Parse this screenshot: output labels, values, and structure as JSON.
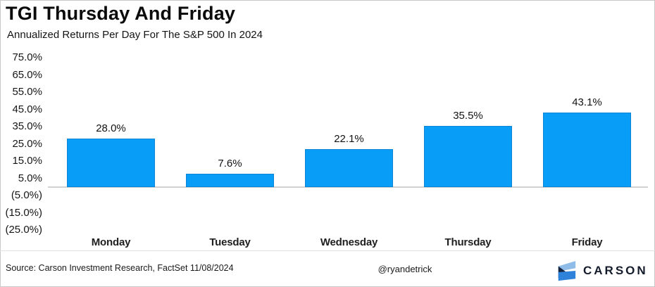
{
  "page": {
    "title": "TGI Thursday And Friday",
    "subtitle": "Annualized Returns Per Day For The S&P 500 In 2024"
  },
  "chart_data": {
    "type": "bar",
    "title": "TGI Thursday And Friday",
    "subtitle": "Annualized Returns Per Day For The S&P 500 In 2024",
    "categories": [
      "Monday",
      "Tuesday",
      "Wednesday",
      "Thursday",
      "Friday"
    ],
    "values": [
      28.0,
      7.6,
      22.1,
      35.5,
      43.1
    ],
    "value_labels": [
      "28.0%",
      "7.6%",
      "22.1%",
      "35.5%",
      "43.1%"
    ],
    "ytick_values": [
      75,
      65,
      55,
      45,
      35,
      25,
      15,
      5,
      -5,
      -15,
      -25
    ],
    "ytick_labels": [
      "75.0%",
      "65.0%",
      "55.0%",
      "45.0%",
      "35.0%",
      "25.0%",
      "15.0%",
      "5.0%",
      "(5.0%)",
      "(15.0%)",
      "(25.0%)"
    ],
    "ylim": [
      -25,
      75
    ],
    "grid": false,
    "legend": "none",
    "bar_color": "#089EF8",
    "xlabel": "",
    "ylabel": ""
  },
  "footer": {
    "source": "Source: Carson Investment Research, FactSet 11/08/2024",
    "handle": "@ryandetrick",
    "brand": "CARSON"
  },
  "colors": {
    "bar": "#089EF8",
    "bar_edge": "#0d84d4",
    "axis_line": "#d2d2d2",
    "logo_light_blue": "#8FBCE8",
    "logo_dark_navy": "#16233D",
    "logo_bright_blue": "#2E82D9"
  }
}
